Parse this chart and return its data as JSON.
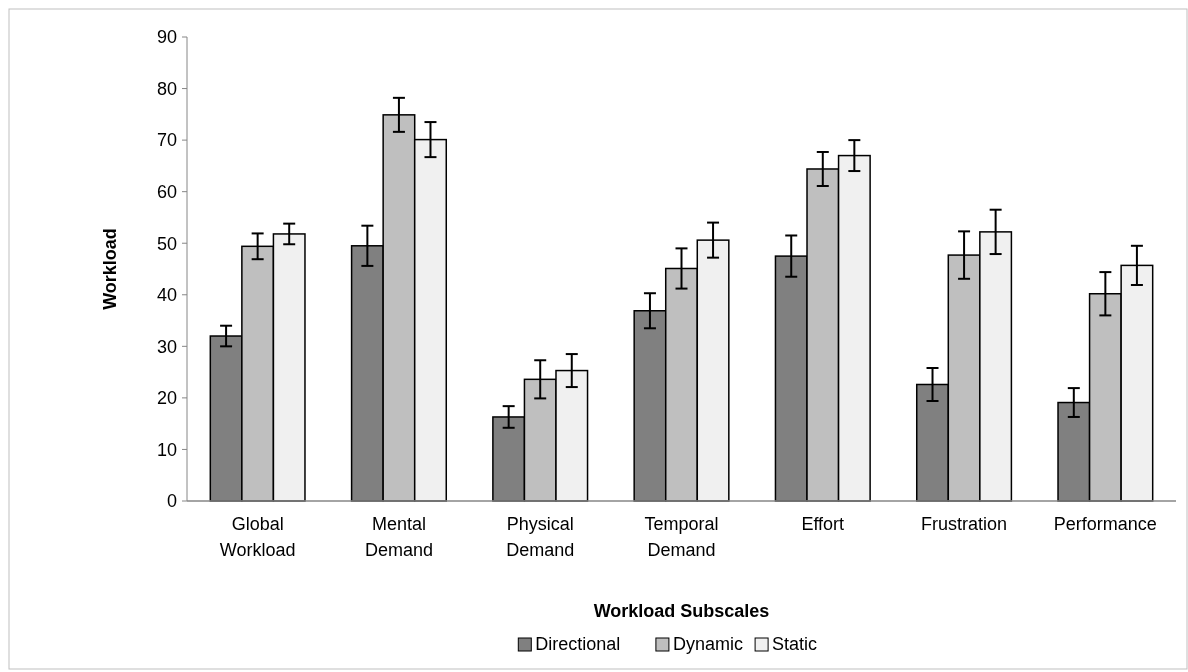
{
  "chart_data": {
    "type": "bar",
    "xlabel": "Workload Subscales",
    "ylabel": "Workload",
    "categories": [
      "Global Workload",
      "Mental Demand",
      "Physical Demand",
      "Temporal Demand",
      "Effort",
      "Frustration",
      "Performance"
    ],
    "series": [
      {
        "name": "Directional",
        "color": "#808080",
        "values": [
          32.0,
          49.5,
          16.3,
          36.9,
          47.5,
          22.6,
          19.1
        ],
        "errors": [
          2.0,
          3.9,
          2.1,
          3.4,
          4.0,
          3.2,
          2.8
        ]
      },
      {
        "name": "Dynamic",
        "color": "#bfbfbf",
        "values": [
          49.4,
          74.9,
          23.6,
          45.1,
          64.4,
          47.7,
          40.2
        ],
        "errors": [
          2.5,
          3.3,
          3.7,
          3.9,
          3.3,
          4.6,
          4.2
        ]
      },
      {
        "name": "Static",
        "color": "#f0f0f0",
        "values": [
          51.8,
          70.1,
          25.3,
          50.6,
          67.0,
          52.2,
          45.7
        ],
        "errors": [
          2.0,
          3.4,
          3.2,
          3.4,
          3.0,
          4.3,
          3.8
        ]
      }
    ],
    "ylim": [
      0,
      90
    ],
    "yticks": [
      0,
      10,
      20,
      30,
      40,
      50,
      60,
      70,
      80,
      90
    ],
    "grid": false,
    "legend": "bottom"
  }
}
